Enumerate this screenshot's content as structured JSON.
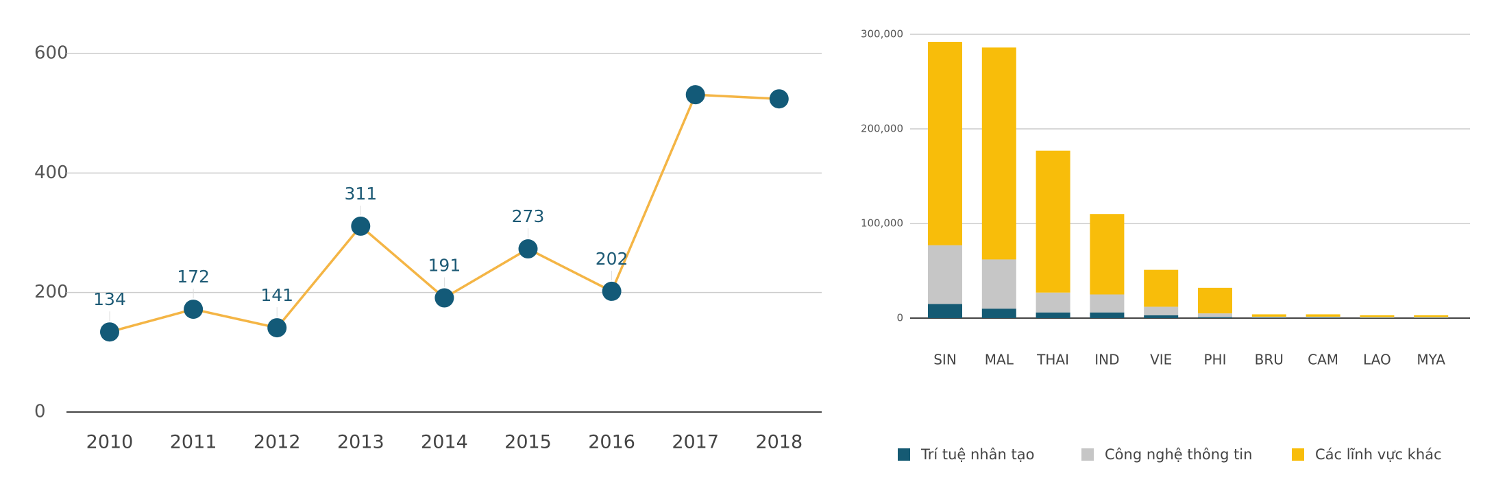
{
  "chart_data": [
    {
      "type": "line",
      "categories": [
        "2010",
        "2011",
        "2012",
        "2013",
        "2014",
        "2015",
        "2016",
        "2017",
        "2018"
      ],
      "values": [
        134,
        172,
        141,
        311,
        191,
        273,
        202,
        531,
        524
      ],
      "value_labels": [
        "134",
        "172",
        "141",
        "311",
        "191",
        "273",
        "202",
        null,
        null
      ],
      "color": "#f4b545",
      "marker_color": "#135a78",
      "ylim": [
        0,
        600
      ],
      "yticks": [
        0,
        200,
        400,
        600
      ],
      "grid": true
    },
    {
      "type": "bar",
      "stacked": true,
      "categories": [
        "SIN",
        "MAL",
        "THAI",
        "IND",
        "VIE",
        "PHI",
        "BRU",
        "CAM",
        "LAO",
        "MYA"
      ],
      "series": [
        {
          "name": "Trí tuệ nhân tạo",
          "color": "#155a73",
          "values": [
            15000,
            10000,
            6000,
            6000,
            3000,
            1000,
            500,
            500,
            300,
            300
          ]
        },
        {
          "name": "Công nghệ thông tin",
          "color": "#c6c6c6",
          "values": [
            62000,
            52000,
            21000,
            19000,
            9000,
            4000,
            1000,
            1000,
            700,
            700
          ]
        },
        {
          "name": "Các lĩnh vực khác",
          "color": "#f8bd0a",
          "values": [
            215000,
            224000,
            150000,
            85000,
            39000,
            27000,
            2500,
            2500,
            2000,
            2000
          ]
        }
      ],
      "ylim": [
        0,
        300000
      ],
      "yticks": [
        0,
        {
          "value": 100000,
          "label": "100,000"
        },
        {
          "value": 200000,
          "label": "200,000"
        },
        {
          "value": 300000,
          "label": "300,000"
        }
      ],
      "grid": true,
      "legend": "bottom"
    }
  ]
}
